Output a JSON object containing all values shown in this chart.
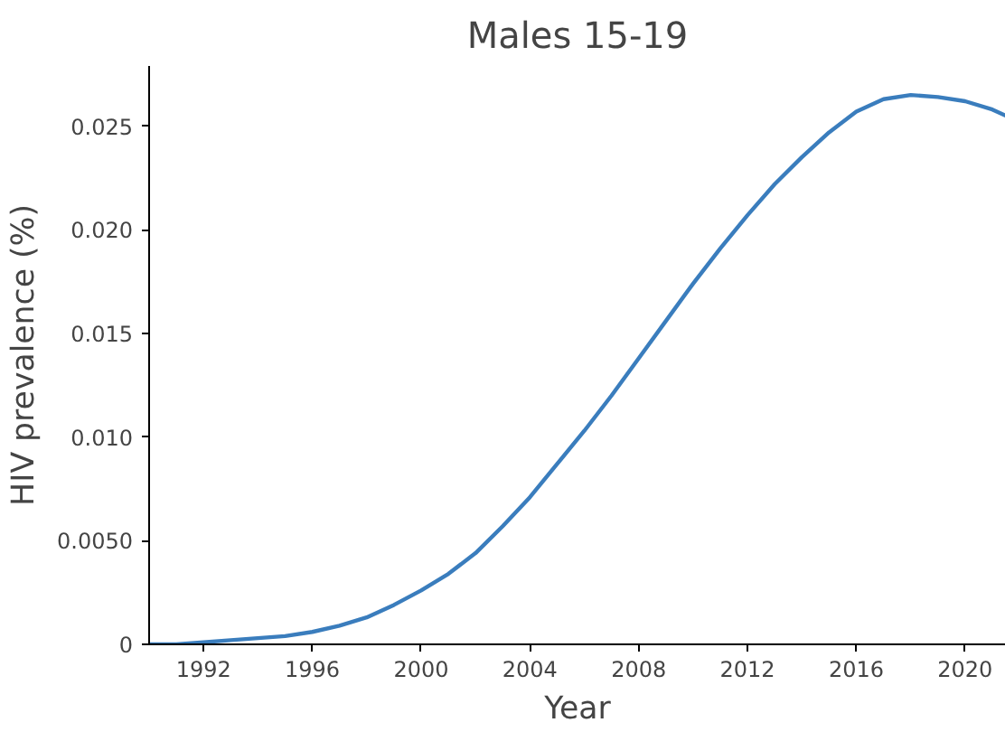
{
  "chart_data": {
    "type": "line",
    "title": "Males 15-19",
    "xlabel": "Year",
    "ylabel": "HIV prevalence (%)",
    "x": [
      1990,
      1991,
      1992,
      1993,
      1994,
      1995,
      1996,
      1997,
      1998,
      1999,
      2000,
      2001,
      2002,
      2003,
      2004,
      2005,
      2006,
      2007,
      2008,
      2009,
      2010,
      2011,
      2012,
      2013,
      2014,
      2015,
      2016,
      2017,
      2018,
      2019,
      2020,
      2021,
      2021.5
    ],
    "series": [
      {
        "color": "#3a7dbd",
        "values": [
          0,
          0,
          0.0001,
          0.0002,
          0.0003,
          0.0004,
          0.0006,
          0.0009,
          0.0013,
          0.0019,
          0.0026,
          0.0034,
          0.0044,
          0.0057,
          0.0071,
          0.0087,
          0.0103,
          0.012,
          0.0138,
          0.0156,
          0.0174,
          0.0191,
          0.0207,
          0.0222,
          0.0235,
          0.0247,
          0.0257,
          0.0263,
          0.0265,
          0.0264,
          0.0262,
          0.0258,
          0.0255
        ]
      }
    ],
    "xlim": [
      1990,
      2021.5
    ],
    "ylim": [
      0,
      0.0279
    ],
    "xticks": [
      1992,
      1996,
      2000,
      2004,
      2008,
      2012,
      2016,
      2020
    ],
    "yticks": [
      {
        "value": 0,
        "label": "0"
      },
      {
        "value": 0.005,
        "label": "0.0050"
      },
      {
        "value": 0.01,
        "label": "0.010"
      },
      {
        "value": 0.015,
        "label": "0.015"
      },
      {
        "value": 0.02,
        "label": "0.020"
      },
      {
        "value": 0.025,
        "label": "0.025"
      }
    ],
    "grid": false,
    "line_style": "solid",
    "marker": "none"
  }
}
